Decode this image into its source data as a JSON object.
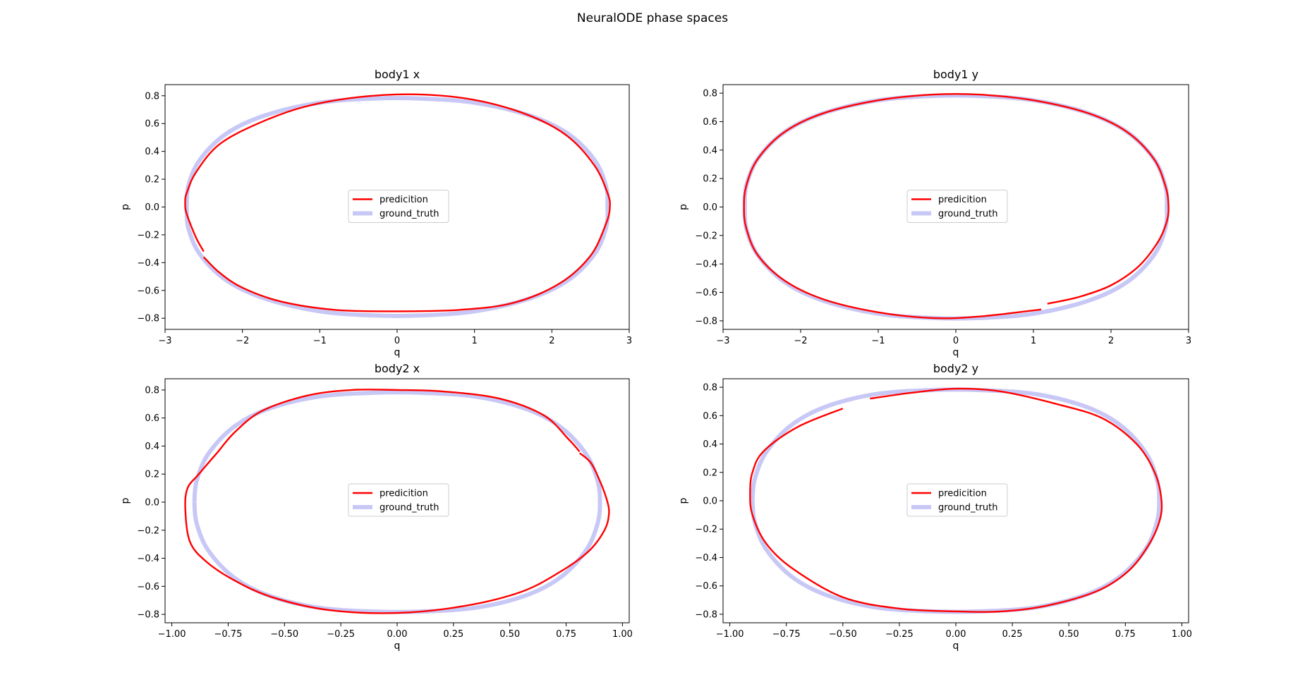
{
  "figure": {
    "suptitle": "NeuralODE phase spaces"
  },
  "colors": {
    "prediction": "#ff0000",
    "ground_truth": "#c8c8f6",
    "axes": "#000000",
    "legend_border": "#cccccc"
  },
  "legend_labels": [
    "predicition",
    "ground_truth"
  ],
  "chart_data": [
    {
      "type": "line",
      "title": "body1 x",
      "xlabel": "q",
      "ylabel": "p",
      "xlim": [
        -3,
        3
      ],
      "ylim": [
        -0.88,
        0.88
      ],
      "xticks": [
        -3,
        -2,
        -1,
        0,
        1,
        2,
        3
      ],
      "xtick_labels": [
        "−3",
        "−2",
        "−1",
        "0",
        "1",
        "2",
        "3"
      ],
      "yticks": [
        -0.8,
        -0.6,
        -0.4,
        -0.2,
        0.0,
        0.2,
        0.4,
        0.6,
        0.8
      ],
      "ytick_labels": [
        "−0.8",
        "−0.6",
        "−0.4",
        "−0.2",
        "0.0",
        "0.2",
        "0.4",
        "0.6",
        "0.8"
      ],
      "legend": "center",
      "series": [
        {
          "name": "predicition",
          "x": [
            -2.5,
            -2.6,
            -2.72,
            -2.74,
            -2.72,
            -2.6,
            -2.3,
            -1.8,
            -1.2,
            -0.5,
            0.25,
            1.0,
            1.7,
            2.2,
            2.55,
            2.72,
            2.75,
            2.7,
            2.5,
            2.1,
            1.5,
            0.8,
            0.0,
            -0.8,
            -1.5,
            -2.0,
            -2.3,
            -2.5
          ],
          "y": [
            -0.32,
            -0.22,
            -0.05,
            0.03,
            0.1,
            0.25,
            0.45,
            0.6,
            0.72,
            0.79,
            0.81,
            0.77,
            0.66,
            0.51,
            0.3,
            0.1,
            0.0,
            -0.12,
            -0.35,
            -0.55,
            -0.69,
            -0.74,
            -0.75,
            -0.74,
            -0.68,
            -0.58,
            -0.47,
            -0.36
          ]
        },
        {
          "name": "ground_truth",
          "x": [
            -2.72,
            -2.7,
            -2.55,
            -2.2,
            -1.7,
            -1.0,
            -0.3,
            0.3,
            1.0,
            1.7,
            2.2,
            2.55,
            2.7,
            2.72,
            2.7,
            2.55,
            2.2,
            1.7,
            1.0,
            0.3,
            -0.3,
            -1.0,
            -1.7,
            -2.2,
            -2.55,
            -2.7,
            -2.72
          ],
          "y": [
            0.0,
            0.15,
            0.34,
            0.53,
            0.66,
            0.75,
            0.78,
            0.78,
            0.75,
            0.66,
            0.53,
            0.34,
            0.15,
            0.0,
            -0.15,
            -0.34,
            -0.53,
            -0.66,
            -0.75,
            -0.78,
            -0.78,
            -0.75,
            -0.66,
            -0.53,
            -0.34,
            -0.15,
            0.0
          ]
        }
      ]
    },
    {
      "type": "line",
      "title": "body1 y",
      "xlabel": "q",
      "ylabel": "p",
      "xlim": [
        -3,
        3
      ],
      "ylim": [
        -0.86,
        0.86
      ],
      "xticks": [
        -3,
        -2,
        -1,
        0,
        1,
        2,
        3
      ],
      "xtick_labels": [
        "−3",
        "−2",
        "−1",
        "0",
        "1",
        "2",
        "3"
      ],
      "yticks": [
        -0.8,
        -0.6,
        -0.4,
        -0.2,
        0.0,
        0.2,
        0.4,
        0.6,
        0.8
      ],
      "ytick_labels": [
        "−0.8",
        "−0.6",
        "−0.4",
        "−0.2",
        "0.0",
        "0.2",
        "0.4",
        "0.6",
        "0.8"
      ],
      "legend": "center",
      "series": [
        {
          "name": "predicition",
          "x": [
            1.18,
            1.6,
            2.0,
            2.35,
            2.6,
            2.72,
            2.74,
            2.7,
            2.55,
            2.2,
            1.7,
            1.0,
            0.3,
            -0.3,
            -1.0,
            -1.7,
            -2.2,
            -2.55,
            -2.7,
            -2.73,
            -2.7,
            -2.55,
            -2.2,
            -1.7,
            -1.0,
            -0.3,
            0.3,
            1.1
          ],
          "y": [
            -0.68,
            -0.63,
            -0.55,
            -0.42,
            -0.25,
            -0.1,
            0.02,
            0.15,
            0.34,
            0.53,
            0.66,
            0.75,
            0.79,
            0.79,
            0.75,
            0.66,
            0.53,
            0.34,
            0.15,
            0.0,
            -0.15,
            -0.34,
            -0.52,
            -0.65,
            -0.74,
            -0.78,
            -0.77,
            -0.72
          ]
        },
        {
          "name": "ground_truth",
          "x": [
            -2.72,
            -2.7,
            -2.55,
            -2.2,
            -1.7,
            -1.0,
            -0.3,
            0.3,
            1.0,
            1.7,
            2.2,
            2.55,
            2.7,
            2.72,
            2.7,
            2.55,
            2.2,
            1.7,
            1.0,
            0.3,
            -0.3,
            -1.0,
            -1.7,
            -2.2,
            -2.55,
            -2.7,
            -2.72
          ],
          "y": [
            0.0,
            0.15,
            0.34,
            0.53,
            0.66,
            0.75,
            0.78,
            0.78,
            0.75,
            0.66,
            0.53,
            0.34,
            0.15,
            0.0,
            -0.15,
            -0.34,
            -0.53,
            -0.66,
            -0.75,
            -0.78,
            -0.78,
            -0.75,
            -0.66,
            -0.53,
            -0.34,
            -0.15,
            0.0
          ]
        }
      ]
    },
    {
      "type": "line",
      "title": "body2 x",
      "xlabel": "q",
      "ylabel": "p",
      "xlim": [
        -1.03,
        1.03
      ],
      "ylim": [
        -0.86,
        0.88
      ],
      "xticks": [
        -1.0,
        -0.75,
        -0.5,
        -0.25,
        0.0,
        0.25,
        0.5,
        0.75,
        1.0
      ],
      "xtick_labels": [
        "−1.00",
        "−0.75",
        "−0.50",
        "−0.25",
        "0.00",
        "0.25",
        "0.50",
        "0.75",
        "1.00"
      ],
      "yticks": [
        -0.8,
        -0.6,
        -0.4,
        -0.2,
        0.0,
        0.2,
        0.4,
        0.6,
        0.8
      ],
      "ytick_labels": [
        "−0.8",
        "−0.6",
        "−0.4",
        "−0.2",
        "0.0",
        "0.2",
        "0.4",
        "0.6",
        "0.8"
      ],
      "legend": "center",
      "series": [
        {
          "name": "predicition",
          "x": [
            0.81,
            0.86,
            0.9,
            0.93,
            0.94,
            0.92,
            0.85,
            0.72,
            0.55,
            0.3,
            0.0,
            -0.3,
            -0.55,
            -0.72,
            -0.85,
            -0.92,
            -0.94,
            -0.93,
            -0.88,
            -0.8,
            -0.72,
            -0.6,
            -0.4,
            -0.2,
            0.0,
            0.2,
            0.45,
            0.65,
            0.76,
            0.81
          ],
          "y": [
            0.35,
            0.28,
            0.15,
            0.02,
            -0.08,
            -0.2,
            -0.35,
            -0.5,
            -0.64,
            -0.74,
            -0.79,
            -0.77,
            -0.68,
            -0.56,
            -0.42,
            -0.28,
            -0.05,
            0.1,
            0.2,
            0.35,
            0.5,
            0.65,
            0.76,
            0.8,
            0.8,
            0.79,
            0.74,
            0.62,
            0.45,
            0.36
          ]
        },
        {
          "name": "ground_truth",
          "x": [
            -0.9,
            -0.89,
            -0.84,
            -0.73,
            -0.58,
            -0.36,
            -0.11,
            0.11,
            0.36,
            0.58,
            0.73,
            0.84,
            0.89,
            0.9,
            0.89,
            0.84,
            0.73,
            0.58,
            0.36,
            0.11,
            -0.11,
            -0.36,
            -0.58,
            -0.73,
            -0.84,
            -0.89,
            -0.9
          ],
          "y": [
            0.0,
            0.15,
            0.34,
            0.53,
            0.66,
            0.75,
            0.78,
            0.78,
            0.75,
            0.66,
            0.53,
            0.34,
            0.15,
            0.0,
            -0.15,
            -0.34,
            -0.53,
            -0.66,
            -0.75,
            -0.78,
            -0.78,
            -0.75,
            -0.66,
            -0.53,
            -0.34,
            -0.15,
            0.0
          ]
        }
      ]
    },
    {
      "type": "line",
      "title": "body2 y",
      "xlabel": "q",
      "ylabel": "p",
      "xlim": [
        -1.03,
        1.03
      ],
      "ylim": [
        -0.86,
        0.86
      ],
      "xticks": [
        -1.0,
        -0.75,
        -0.5,
        -0.25,
        0.0,
        0.25,
        0.5,
        0.75,
        1.0
      ],
      "xtick_labels": [
        "−1.00",
        "−0.75",
        "−0.50",
        "−0.25",
        "0.00",
        "0.25",
        "0.50",
        "0.75",
        "1.00"
      ],
      "yticks": [
        -0.8,
        -0.6,
        -0.4,
        -0.2,
        0.0,
        0.2,
        0.4,
        0.6,
        0.8
      ],
      "ytick_labels": [
        "−0.8",
        "−0.6",
        "−0.4",
        "−0.2",
        "0.0",
        "0.2",
        "0.4",
        "0.6",
        "0.8"
      ],
      "legend": "center",
      "series": [
        {
          "name": "predicition",
          "x": [
            -0.38,
            -0.2,
            0.0,
            0.2,
            0.45,
            0.65,
            0.8,
            0.88,
            0.91,
            0.9,
            0.85,
            0.76,
            0.62,
            0.4,
            0.2,
            0.0,
            -0.25,
            -0.5,
            -0.72,
            -0.84,
            -0.9,
            -0.91,
            -0.9,
            -0.85,
            -0.7,
            -0.5
          ],
          "y": [
            0.72,
            0.76,
            0.79,
            0.77,
            0.68,
            0.58,
            0.4,
            0.2,
            0.0,
            -0.15,
            -0.32,
            -0.5,
            -0.64,
            -0.74,
            -0.78,
            -0.78,
            -0.76,
            -0.68,
            -0.48,
            -0.3,
            -0.1,
            0.05,
            0.2,
            0.35,
            0.52,
            0.65
          ]
        },
        {
          "name": "ground_truth",
          "x": [
            -0.9,
            -0.89,
            -0.84,
            -0.73,
            -0.58,
            -0.36,
            -0.11,
            0.11,
            0.36,
            0.58,
            0.73,
            0.84,
            0.89,
            0.9,
            0.89,
            0.84,
            0.73,
            0.58,
            0.36,
            0.11,
            -0.11,
            -0.36,
            -0.58,
            -0.73,
            -0.84,
            -0.89,
            -0.9
          ],
          "y": [
            0.0,
            0.15,
            0.34,
            0.53,
            0.66,
            0.75,
            0.78,
            0.78,
            0.75,
            0.66,
            0.53,
            0.34,
            0.15,
            0.0,
            -0.15,
            -0.34,
            -0.53,
            -0.66,
            -0.75,
            -0.78,
            -0.78,
            -0.75,
            -0.66,
            -0.53,
            -0.34,
            -0.15,
            0.0
          ]
        }
      ]
    }
  ]
}
